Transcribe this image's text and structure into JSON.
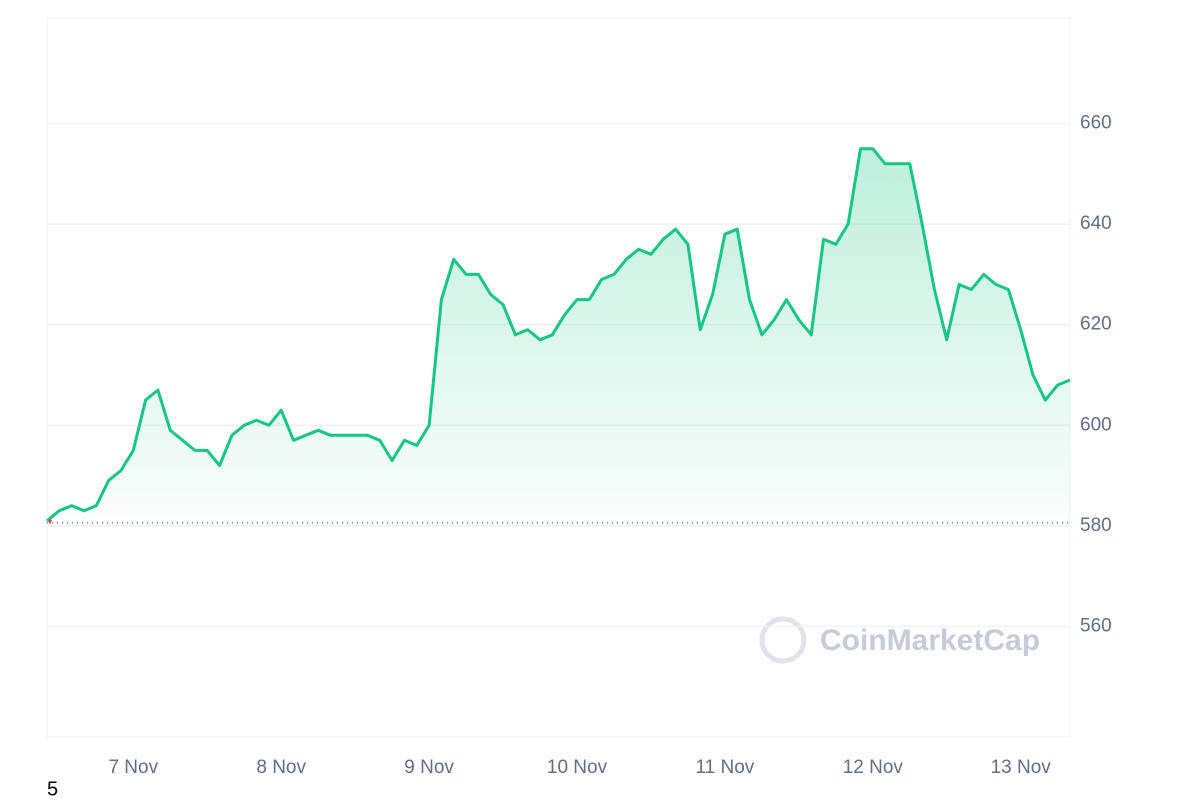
{
  "chart_data": {
    "type": "line",
    "categories": [
      null,
      null,
      null,
      null,
      null,
      null,
      null,
      "7 Nov",
      null,
      null,
      null,
      null,
      null,
      null,
      null,
      null,
      null,
      null,
      null,
      "8 Nov",
      null,
      null,
      null,
      null,
      null,
      null,
      null,
      null,
      null,
      null,
      null,
      "9 Nov",
      null,
      null,
      null,
      null,
      null,
      null,
      null,
      null,
      null,
      null,
      null,
      "10 Nov",
      null,
      null,
      null,
      null,
      null,
      null,
      null,
      null,
      null,
      null,
      null,
      "11 Nov",
      null,
      null,
      null,
      null,
      null,
      null,
      null,
      null,
      null,
      null,
      null,
      "12 Nov",
      null,
      null,
      null,
      null,
      null,
      null,
      null,
      null,
      null,
      null,
      null,
      "13 Nov",
      null,
      null,
      null,
      null
    ],
    "series": [
      {
        "color": "#16c784",
        "values": [
          581,
          583,
          584,
          583,
          584,
          589,
          591,
          595,
          605,
          607,
          599,
          597,
          595,
          595,
          592,
          598,
          600,
          601,
          600,
          603,
          597,
          598,
          599,
          598,
          598,
          598,
          598,
          597,
          593,
          597,
          596,
          600,
          625,
          633,
          630,
          630,
          626,
          624,
          618,
          619,
          617,
          618,
          622,
          625,
          625,
          629,
          630,
          633,
          635,
          634,
          637,
          639,
          636,
          619,
          626,
          638,
          639,
          625,
          618,
          621,
          625,
          621,
          618,
          637,
          636,
          640,
          655,
          655,
          652,
          652,
          652,
          640,
          627,
          617,
          628,
          627,
          630,
          628,
          627,
          619,
          610,
          605,
          608,
          609
        ]
      }
    ],
    "baseline": 580.6,
    "ylim": [
      538,
      681
    ],
    "yticks": [
      560,
      580,
      600,
      620,
      640,
      660
    ],
    "grid": true,
    "watermark": "CoinMarketCap",
    "footer_text": "5"
  }
}
